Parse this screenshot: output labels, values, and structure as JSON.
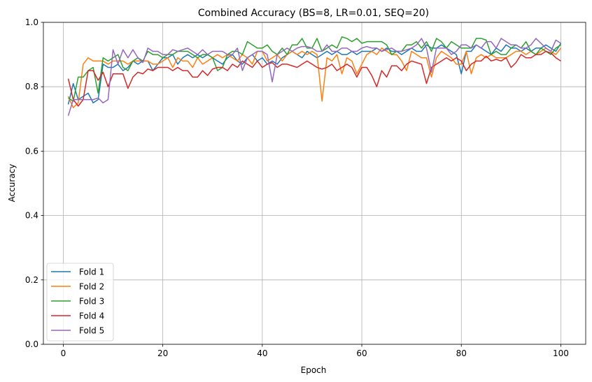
{
  "chart_data": {
    "type": "line",
    "title": "Combined Accuracy (BS=8, LR=0.01, SEQ=20)",
    "xlabel": "Epoch",
    "ylabel": "Accuracy",
    "xlim": [
      -4,
      105
    ],
    "ylim": [
      0.0,
      1.0
    ],
    "xticks": [
      0,
      20,
      40,
      60,
      80,
      100
    ],
    "yticks": [
      0.0,
      0.2,
      0.4,
      0.6,
      0.8,
      1.0
    ],
    "xtick_labels": [
      "0",
      "20",
      "40",
      "60",
      "80",
      "100"
    ],
    "ytick_labels": [
      "0.0",
      "0.2",
      "0.4",
      "0.6",
      "0.8",
      "1.0"
    ],
    "grid": true,
    "legend_position": "lower-left",
    "x": [
      1,
      2,
      3,
      4,
      5,
      6,
      7,
      8,
      9,
      10,
      11,
      12,
      13,
      14,
      15,
      16,
      17,
      18,
      19,
      20,
      21,
      22,
      23,
      24,
      25,
      26,
      27,
      28,
      29,
      30,
      31,
      32,
      33,
      34,
      35,
      36,
      37,
      38,
      39,
      40,
      41,
      42,
      43,
      44,
      45,
      46,
      47,
      48,
      49,
      50,
      51,
      52,
      53,
      54,
      55,
      56,
      57,
      58,
      59,
      60,
      61,
      62,
      63,
      64,
      65,
      66,
      67,
      68,
      69,
      70,
      71,
      72,
      73,
      74,
      75,
      76,
      77,
      78,
      79,
      80,
      81,
      82,
      83,
      84,
      85,
      86,
      87,
      88,
      89,
      90,
      91,
      92,
      93,
      94,
      95,
      96,
      97,
      98,
      99,
      100
    ],
    "series": [
      {
        "name": "Fold 1",
        "color": "#1f77b4",
        "values": [
          0.745,
          0.81,
          0.76,
          0.77,
          0.78,
          0.75,
          0.76,
          0.87,
          0.86,
          0.86,
          0.87,
          0.85,
          0.86,
          0.88,
          0.87,
          0.88,
          0.88,
          0.85,
          0.87,
          0.89,
          0.89,
          0.9,
          0.87,
          0.89,
          0.9,
          0.89,
          0.9,
          0.89,
          0.9,
          0.89,
          0.88,
          0.87,
          0.89,
          0.9,
          0.88,
          0.87,
          0.89,
          0.9,
          0.88,
          0.89,
          0.87,
          0.88,
          0.87,
          0.89,
          0.9,
          0.91,
          0.9,
          0.89,
          0.91,
          0.9,
          0.89,
          0.9,
          0.91,
          0.9,
          0.91,
          0.9,
          0.9,
          0.91,
          0.9,
          0.91,
          0.91,
          0.91,
          0.92,
          0.91,
          0.92,
          0.91,
          0.91,
          0.9,
          0.91,
          0.92,
          0.91,
          0.91,
          0.93,
          0.92,
          0.92,
          0.93,
          0.92,
          0.91,
          0.9,
          0.84,
          0.91,
          0.91,
          0.93,
          0.92,
          0.91,
          0.9,
          0.92,
          0.91,
          0.93,
          0.92,
          0.92,
          0.91,
          0.92,
          0.91,
          0.92,
          0.92,
          0.93,
          0.92,
          0.91,
          0.935
        ]
      },
      {
        "name": "Fold 2",
        "color": "#ff7f0e",
        "values": [
          0.77,
          0.735,
          0.75,
          0.87,
          0.89,
          0.88,
          0.88,
          0.88,
          0.87,
          0.88,
          0.88,
          0.88,
          0.87,
          0.88,
          0.88,
          0.88,
          0.88,
          0.87,
          0.87,
          0.88,
          0.89,
          0.86,
          0.89,
          0.88,
          0.88,
          0.86,
          0.89,
          0.87,
          0.88,
          0.89,
          0.9,
          0.89,
          0.9,
          0.89,
          0.88,
          0.9,
          0.89,
          0.87,
          0.91,
          0.91,
          0.88,
          0.89,
          0.9,
          0.88,
          0.9,
          0.91,
          0.9,
          0.91,
          0.9,
          0.91,
          0.9,
          0.755,
          0.89,
          0.88,
          0.9,
          0.84,
          0.89,
          0.88,
          0.84,
          0.87,
          0.9,
          0.91,
          0.9,
          0.92,
          0.91,
          0.9,
          0.9,
          0.88,
          0.85,
          0.91,
          0.9,
          0.89,
          0.89,
          0.83,
          0.89,
          0.91,
          0.9,
          0.89,
          0.87,
          0.87,
          0.91,
          0.84,
          0.89,
          0.9,
          0.89,
          0.9,
          0.89,
          0.89,
          0.89,
          0.9,
          0.91,
          0.91,
          0.9,
          0.91,
          0.9,
          0.91,
          0.92,
          0.91,
          0.9,
          0.92
        ]
      },
      {
        "name": "Fold 3",
        "color": "#2ca02c",
        "values": [
          0.765,
          0.755,
          0.83,
          0.83,
          0.85,
          0.86,
          0.78,
          0.89,
          0.88,
          0.89,
          0.9,
          0.86,
          0.85,
          0.88,
          0.89,
          0.88,
          0.91,
          0.9,
          0.9,
          0.89,
          0.9,
          0.9,
          0.91,
          0.91,
          0.91,
          0.9,
          0.89,
          0.9,
          0.9,
          0.89,
          0.85,
          0.86,
          0.9,
          0.91,
          0.91,
          0.9,
          0.94,
          0.93,
          0.92,
          0.92,
          0.93,
          0.91,
          0.9,
          0.92,
          0.9,
          0.93,
          0.93,
          0.95,
          0.92,
          0.92,
          0.95,
          0.91,
          0.92,
          0.93,
          0.92,
          0.955,
          0.95,
          0.94,
          0.95,
          0.935,
          0.94,
          0.94,
          0.94,
          0.94,
          0.93,
          0.9,
          0.91,
          0.91,
          0.93,
          0.93,
          0.94,
          0.92,
          0.94,
          0.91,
          0.95,
          0.94,
          0.92,
          0.94,
          0.93,
          0.92,
          0.92,
          0.92,
          0.95,
          0.95,
          0.945,
          0.9,
          0.91,
          0.9,
          0.9,
          0.92,
          0.93,
          0.92,
          0.94,
          0.91,
          0.9,
          0.92,
          0.91,
          0.9,
          0.92,
          0.93
        ]
      },
      {
        "name": "Fold 4",
        "color": "#d62728",
        "values": [
          0.825,
          0.76,
          0.74,
          0.76,
          0.85,
          0.85,
          0.82,
          0.845,
          0.8,
          0.84,
          0.84,
          0.84,
          0.795,
          0.83,
          0.845,
          0.84,
          0.855,
          0.85,
          0.86,
          0.86,
          0.86,
          0.85,
          0.86,
          0.85,
          0.85,
          0.83,
          0.83,
          0.85,
          0.835,
          0.855,
          0.86,
          0.86,
          0.85,
          0.87,
          0.86,
          0.88,
          0.87,
          0.86,
          0.88,
          0.86,
          0.87,
          0.875,
          0.86,
          0.87,
          0.87,
          0.865,
          0.86,
          0.87,
          0.88,
          0.87,
          0.86,
          0.855,
          0.86,
          0.87,
          0.85,
          0.86,
          0.87,
          0.86,
          0.83,
          0.86,
          0.86,
          0.835,
          0.8,
          0.85,
          0.83,
          0.865,
          0.865,
          0.85,
          0.87,
          0.88,
          0.875,
          0.87,
          0.81,
          0.86,
          0.87,
          0.88,
          0.89,
          0.88,
          0.89,
          0.88,
          0.85,
          0.87,
          0.88,
          0.88,
          0.895,
          0.88,
          0.885,
          0.88,
          0.89,
          0.86,
          0.875,
          0.9,
          0.89,
          0.89,
          0.9,
          0.9,
          0.91,
          0.905,
          0.89,
          0.88
        ]
      },
      {
        "name": "Fold 5",
        "color": "#9467bd",
        "values": [
          0.71,
          0.76,
          0.76,
          0.76,
          0.76,
          0.76,
          0.765,
          0.75,
          0.76,
          0.915,
          0.87,
          0.915,
          0.89,
          0.915,
          0.89,
          0.875,
          0.92,
          0.91,
          0.91,
          0.9,
          0.9,
          0.915,
          0.91,
          0.915,
          0.92,
          0.91,
          0.9,
          0.915,
          0.9,
          0.91,
          0.91,
          0.91,
          0.9,
          0.9,
          0.92,
          0.85,
          0.89,
          0.9,
          0.91,
          0.91,
          0.9,
          0.815,
          0.9,
          0.91,
          0.92,
          0.91,
          0.92,
          0.925,
          0.925,
          0.92,
          0.91,
          0.91,
          0.93,
          0.91,
          0.91,
          0.92,
          0.92,
          0.91,
          0.91,
          0.92,
          0.925,
          0.92,
          0.92,
          0.91,
          0.915,
          0.92,
          0.91,
          0.91,
          0.915,
          0.92,
          0.93,
          0.95,
          0.92,
          0.845,
          0.92,
          0.92,
          0.92,
          0.9,
          0.91,
          0.93,
          0.93,
          0.92,
          0.93,
          0.92,
          0.94,
          0.94,
          0.92,
          0.95,
          0.94,
          0.93,
          0.93,
          0.92,
          0.92,
          0.93,
          0.95,
          0.935,
          0.92,
          0.91,
          0.945,
          0.935
        ]
      }
    ]
  }
}
